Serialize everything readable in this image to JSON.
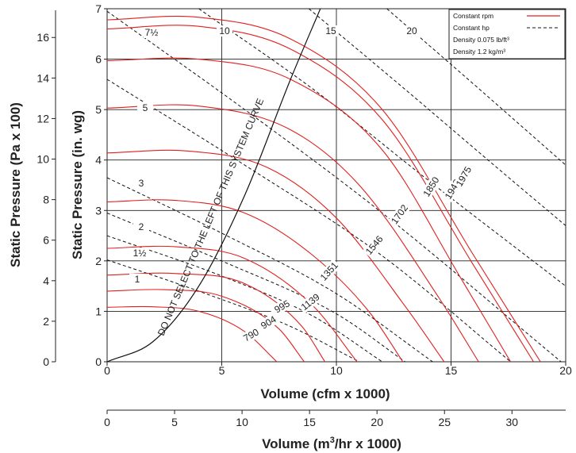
{
  "chart_data": {
    "type": "line",
    "title": "",
    "xlabel": "Volume (cfm x 1000)",
    "ylabel": "Static Pressure (in. wg)",
    "xlim": [
      0,
      20
    ],
    "ylim": [
      0,
      7
    ],
    "x_ticks": [
      "0",
      "5",
      "10",
      "15",
      "20"
    ],
    "y_ticks": [
      "0",
      "1",
      "2",
      "3",
      "4",
      "5",
      "6",
      "7"
    ],
    "grid": true,
    "secondary_y": {
      "label": "Static Pressure (Pa x 100)",
      "ticks": [
        "0",
        "2",
        "4",
        "6",
        "8",
        "10",
        "12",
        "14",
        "16"
      ]
    },
    "secondary_x": {
      "label": "Volume (m3/hr x 1000)",
      "ticks": [
        "0",
        "5",
        "10",
        "15",
        "20",
        "25",
        "30"
      ]
    },
    "legend": {
      "position": "top-right",
      "entries": [
        {
          "label": "Constant rpm",
          "style": "solid",
          "color": "#e0201e"
        },
        {
          "label": "Constant hp",
          "style": "dashed",
          "color": "#111111"
        }
      ],
      "notes": [
        "Density 0.075 lb/ft³",
        "Density 1.2 kg/m³"
      ]
    },
    "system_curve_label": "DO NOT SELECT TO THE LEFT OF THIS SYSTEM CURVE",
    "rpm_series": [
      {
        "name": "790",
        "x": [
          0,
          2,
          4,
          6,
          7.4
        ],
        "y": [
          1.08,
          1.09,
          1.0,
          0.6,
          0
        ]
      },
      {
        "name": "904",
        "x": [
          0,
          2.5,
          5,
          7.5,
          8.6
        ],
        "y": [
          1.4,
          1.43,
          1.3,
          0.65,
          0
        ]
      },
      {
        "name": "995",
        "x": [
          0,
          3,
          6,
          8.5,
          9.5
        ],
        "y": [
          1.72,
          1.75,
          1.55,
          0.7,
          0
        ]
      },
      {
        "name": "1139",
        "x": [
          0,
          3,
          6,
          9,
          10.9
        ],
        "y": [
          2.25,
          2.28,
          2.05,
          1.1,
          0
        ]
      },
      {
        "name": "1351",
        "x": [
          0,
          3,
          6,
          9,
          11.5,
          12.9
        ],
        "y": [
          3.17,
          3.2,
          2.95,
          2.1,
          0.95,
          0
        ]
      },
      {
        "name": "1546",
        "x": [
          0,
          3.5,
          7,
          10,
          13,
          14.7
        ],
        "y": [
          4.14,
          4.18,
          3.85,
          2.85,
          1.1,
          0
        ]
      },
      {
        "name": "1702",
        "x": [
          0,
          4,
          8,
          11,
          14.5,
          16.2
        ],
        "y": [
          5.03,
          5.07,
          4.6,
          3.5,
          1.25,
          0
        ]
      },
      {
        "name": "1850",
        "x": [
          0,
          4,
          8,
          12,
          15.5,
          17.6
        ],
        "y": [
          5.97,
          6.0,
          5.6,
          4.2,
          1.6,
          0
        ]
      },
      {
        "name": "1948",
        "x": [
          0,
          4,
          8,
          12,
          16,
          18.6
        ],
        "y": [
          6.6,
          6.65,
          6.2,
          4.8,
          1.9,
          0
        ]
      },
      {
        "name": "1975",
        "x": [
          0,
          4,
          8,
          12,
          16,
          18.9
        ],
        "y": [
          6.78,
          6.83,
          6.4,
          5.0,
          2.1,
          0
        ]
      }
    ],
    "hp_series": [
      {
        "name": "1",
        "x": [
          0,
          4,
          8,
          11
        ],
        "y": [
          2.02,
          1.4,
          0.7,
          0
        ]
      },
      {
        "name": "1½",
        "x": [
          0,
          5,
          9,
          12
        ],
        "y": [
          2.5,
          1.7,
          0.9,
          0
        ]
      },
      {
        "name": "2",
        "x": [
          0,
          5,
          10,
          13
        ],
        "y": [
          2.95,
          2.0,
          0.95,
          0
        ]
      },
      {
        "name": "3",
        "x": [
          0,
          5,
          10,
          14.2
        ],
        "y": [
          3.65,
          2.55,
          1.35,
          0
        ]
      },
      {
        "name": "5",
        "x": [
          0,
          6,
          12,
          17.6
        ],
        "y": [
          5.6,
          3.9,
          2.1,
          0
        ]
      },
      {
        "name": "7½",
        "x": [
          0,
          6,
          12,
          19.8
        ],
        "y": [
          6.95,
          5.0,
          2.95,
          0
        ]
      },
      {
        "name": "10",
        "x": [
          4,
          9,
          14,
          20
        ],
        "y": [
          7.0,
          5.4,
          3.6,
          1.5
        ]
      },
      {
        "name": "15",
        "x": [
          8.8,
          13,
          17,
          20
        ],
        "y": [
          7.0,
          5.4,
          3.85,
          2.7
        ]
      },
      {
        "name": "20",
        "x": [
          12.2,
          16,
          20
        ],
        "y": [
          7.0,
          5.5,
          3.9
        ]
      }
    ],
    "system_curve": {
      "x": [
        0,
        2,
        4,
        6,
        8,
        9.3
      ],
      "y": [
        0,
        0.4,
        1.5,
        3.3,
        5.6,
        7.0
      ]
    }
  }
}
